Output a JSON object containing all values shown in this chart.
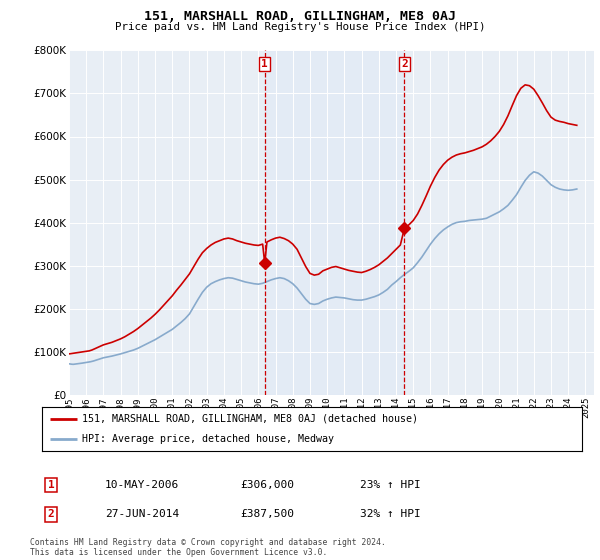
{
  "title": "151, MARSHALL ROAD, GILLINGHAM, ME8 0AJ",
  "subtitle": "Price paid vs. HM Land Registry's House Price Index (HPI)",
  "ylim": [
    0,
    800000
  ],
  "yticks": [
    0,
    100000,
    200000,
    300000,
    400000,
    500000,
    600000,
    700000,
    800000
  ],
  "xlim_start": 1995.0,
  "xlim_end": 2025.5,
  "vline1_x": 2006.37,
  "vline2_x": 2014.49,
  "sale1_date": "10-MAY-2006",
  "sale1_price": "£306,000",
  "sale1_hpi": "23% ↑ HPI",
  "sale2_date": "27-JUN-2014",
  "sale2_price": "£387,500",
  "sale2_hpi": "32% ↑ HPI",
  "legend_line1": "151, MARSHALL ROAD, GILLINGHAM, ME8 0AJ (detached house)",
  "legend_line2": "HPI: Average price, detached house, Medway",
  "footer": "Contains HM Land Registry data © Crown copyright and database right 2024.\nThis data is licensed under the Open Government Licence v3.0.",
  "line1_color": "#cc0000",
  "line2_color": "#88aacc",
  "vline_color": "#cc0000",
  "shade_color": "#dce8f5",
  "plot_bg": "#e8eef5",
  "sale1_dot_x": 2006.37,
  "sale1_dot_y": 306000,
  "sale2_dot_x": 2014.49,
  "sale2_dot_y": 387500,
  "hpi_x": [
    1995.0,
    1995.08,
    1995.17,
    1995.25,
    1995.33,
    1995.42,
    1995.5,
    1995.58,
    1995.67,
    1995.75,
    1995.83,
    1995.92,
    1996.0,
    1996.08,
    1996.17,
    1996.25,
    1996.33,
    1996.42,
    1996.5,
    1996.58,
    1996.67,
    1996.75,
    1996.83,
    1996.92,
    1997.0,
    1997.25,
    1997.5,
    1997.75,
    1998.0,
    1998.25,
    1998.5,
    1998.75,
    1999.0,
    1999.25,
    1999.5,
    1999.75,
    2000.0,
    2000.25,
    2000.5,
    2000.75,
    2001.0,
    2001.25,
    2001.5,
    2001.75,
    2002.0,
    2002.25,
    2002.5,
    2002.75,
    2003.0,
    2003.25,
    2003.5,
    2003.75,
    2004.0,
    2004.25,
    2004.5,
    2004.75,
    2005.0,
    2005.25,
    2005.5,
    2005.75,
    2006.0,
    2006.25,
    2006.5,
    2006.75,
    2007.0,
    2007.25,
    2007.5,
    2007.75,
    2008.0,
    2008.25,
    2008.5,
    2008.75,
    2009.0,
    2009.25,
    2009.5,
    2009.75,
    2010.0,
    2010.25,
    2010.5,
    2010.75,
    2011.0,
    2011.25,
    2011.5,
    2011.75,
    2012.0,
    2012.25,
    2012.5,
    2012.75,
    2013.0,
    2013.25,
    2013.5,
    2013.75,
    2014.0,
    2014.25,
    2014.5,
    2014.75,
    2015.0,
    2015.25,
    2015.5,
    2015.75,
    2016.0,
    2016.25,
    2016.5,
    2016.75,
    2017.0,
    2017.25,
    2017.5,
    2017.75,
    2018.0,
    2018.25,
    2018.5,
    2018.75,
    2019.0,
    2019.25,
    2019.5,
    2019.75,
    2020.0,
    2020.25,
    2020.5,
    2020.75,
    2021.0,
    2021.25,
    2021.5,
    2021.75,
    2022.0,
    2022.25,
    2022.5,
    2022.75,
    2023.0,
    2023.25,
    2023.5,
    2023.75,
    2024.0,
    2024.25,
    2024.5
  ],
  "hpi_y": [
    72000,
    71500,
    71000,
    70800,
    71200,
    71500,
    72000,
    72500,
    73000,
    73500,
    74000,
    74500,
    75000,
    75500,
    76000,
    76800,
    77500,
    78500,
    79500,
    80500,
    81500,
    82500,
    83500,
    84500,
    86000,
    88000,
    90000,
    92500,
    95000,
    98000,
    101000,
    104000,
    108000,
    113000,
    118000,
    123000,
    128000,
    134000,
    140000,
    146000,
    152000,
    160000,
    168000,
    177000,
    188000,
    205000,
    222000,
    238000,
    250000,
    258000,
    263000,
    267000,
    270000,
    272000,
    271000,
    268000,
    265000,
    262000,
    260000,
    258000,
    257000,
    259000,
    263000,
    267000,
    270000,
    272000,
    270000,
    265000,
    258000,
    248000,
    235000,
    222000,
    212000,
    210000,
    212000,
    218000,
    222000,
    225000,
    227000,
    226000,
    225000,
    223000,
    221000,
    220000,
    220000,
    222000,
    225000,
    228000,
    232000,
    238000,
    245000,
    255000,
    263000,
    272000,
    280000,
    287000,
    295000,
    307000,
    320000,
    335000,
    350000,
    363000,
    374000,
    383000,
    390000,
    396000,
    400000,
    402000,
    403000,
    405000,
    406000,
    407000,
    408000,
    410000,
    415000,
    420000,
    425000,
    432000,
    440000,
    452000,
    465000,
    482000,
    498000,
    510000,
    518000,
    515000,
    508000,
    498000,
    488000,
    482000,
    478000,
    476000,
    475000,
    476000,
    478000
  ],
  "house_x": [
    1995.0,
    1995.08,
    1995.17,
    1995.25,
    1995.33,
    1995.42,
    1995.5,
    1995.58,
    1995.67,
    1995.75,
    1995.83,
    1995.92,
    1996.0,
    1996.08,
    1996.17,
    1996.25,
    1996.33,
    1996.42,
    1996.5,
    1996.58,
    1996.67,
    1996.75,
    1996.83,
    1996.92,
    1997.0,
    1997.25,
    1997.5,
    1997.75,
    1998.0,
    1998.25,
    1998.5,
    1998.75,
    1999.0,
    1999.25,
    1999.5,
    1999.75,
    2000.0,
    2000.25,
    2000.5,
    2000.75,
    2001.0,
    2001.25,
    2001.5,
    2001.75,
    2002.0,
    2002.25,
    2002.5,
    2002.75,
    2003.0,
    2003.25,
    2003.5,
    2003.75,
    2004.0,
    2004.25,
    2004.5,
    2004.75,
    2005.0,
    2005.25,
    2005.5,
    2005.75,
    2006.0,
    2006.25,
    2006.37,
    2006.5,
    2006.75,
    2007.0,
    2007.25,
    2007.5,
    2007.75,
    2008.0,
    2008.25,
    2008.5,
    2008.75,
    2009.0,
    2009.25,
    2009.5,
    2009.75,
    2010.0,
    2010.25,
    2010.5,
    2010.75,
    2011.0,
    2011.25,
    2011.5,
    2011.75,
    2012.0,
    2012.25,
    2012.5,
    2012.75,
    2013.0,
    2013.25,
    2013.5,
    2013.75,
    2014.0,
    2014.25,
    2014.49,
    2014.75,
    2015.0,
    2015.25,
    2015.5,
    2015.75,
    2016.0,
    2016.25,
    2016.5,
    2016.75,
    2017.0,
    2017.25,
    2017.5,
    2017.75,
    2018.0,
    2018.25,
    2018.5,
    2018.75,
    2019.0,
    2019.25,
    2019.5,
    2019.75,
    2020.0,
    2020.25,
    2020.5,
    2020.75,
    2021.0,
    2021.25,
    2021.5,
    2021.75,
    2022.0,
    2022.25,
    2022.5,
    2022.75,
    2023.0,
    2023.25,
    2023.5,
    2023.75,
    2024.0,
    2024.25,
    2024.5
  ],
  "house_y": [
    95000,
    95500,
    96000,
    96500,
    97000,
    97500,
    98000,
    98500,
    99000,
    99500,
    100000,
    100500,
    101000,
    101500,
    102000,
    103000,
    104000,
    105500,
    107000,
    108500,
    110000,
    111500,
    113000,
    114500,
    116000,
    119000,
    122000,
    126000,
    130000,
    135000,
    141000,
    147000,
    154000,
    162000,
    170000,
    178000,
    187000,
    197000,
    208000,
    219000,
    230000,
    243000,
    255000,
    268000,
    281000,
    298000,
    315000,
    330000,
    340000,
    348000,
    354000,
    358000,
    362000,
    364000,
    362000,
    358000,
    355000,
    352000,
    350000,
    348000,
    347000,
    350000,
    306000,
    355000,
    360000,
    364000,
    366000,
    363000,
    358000,
    350000,
    338000,
    318000,
    298000,
    282000,
    278000,
    280000,
    288000,
    292000,
    296000,
    298000,
    295000,
    292000,
    289000,
    287000,
    285000,
    284000,
    287000,
    291000,
    296000,
    302000,
    310000,
    318000,
    328000,
    338000,
    348000,
    387500,
    395000,
    405000,
    420000,
    440000,
    462000,
    485000,
    505000,
    522000,
    535000,
    545000,
    552000,
    557000,
    560000,
    562000,
    565000,
    568000,
    572000,
    576000,
    582000,
    590000,
    600000,
    612000,
    628000,
    648000,
    672000,
    695000,
    712000,
    720000,
    718000,
    710000,
    695000,
    678000,
    660000,
    645000,
    638000,
    635000,
    633000,
    630000,
    628000,
    626000
  ]
}
